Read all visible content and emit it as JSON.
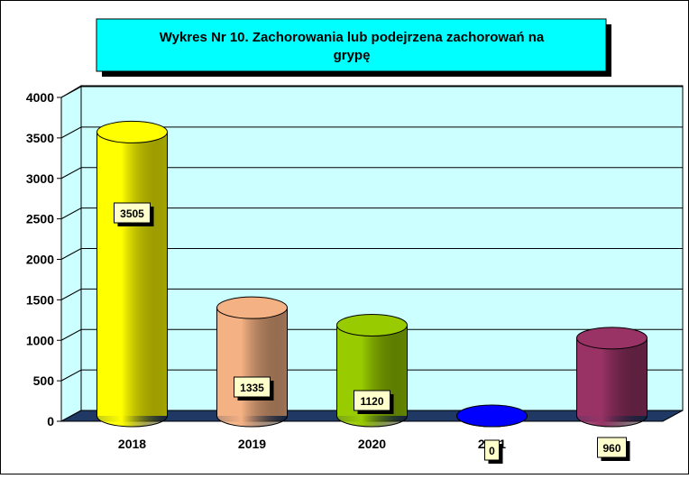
{
  "chart_data": {
    "type": "bar",
    "title": "Wykres Nr 10. Zachorowania lub podejrzena zachorowań na grypę",
    "categories": [
      "2018",
      "2019",
      "2020",
      "2021",
      "2022"
    ],
    "values": [
      3505,
      1335,
      1120,
      0,
      960
    ],
    "colors": [
      "#ffff00",
      "#f4b183",
      "#99cc00",
      "#0000ff",
      "#993366"
    ],
    "ylim": [
      0,
      4000
    ],
    "yticks": [
      0,
      500,
      1000,
      1500,
      2000,
      2500,
      3000,
      3500,
      4000
    ],
    "grid": true
  }
}
